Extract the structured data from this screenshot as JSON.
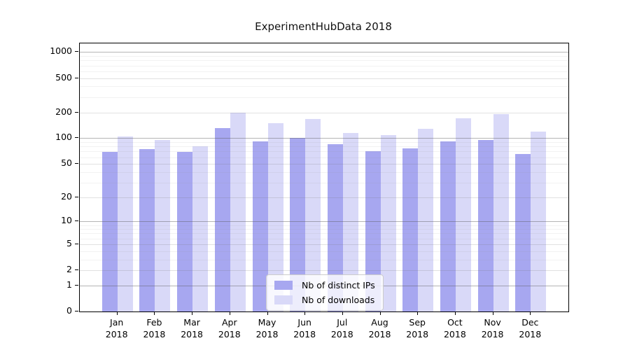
{
  "title": "ExperimentHubData 2018",
  "chart_data": {
    "type": "bar",
    "title": "ExperimentHubData 2018",
    "categories": [
      "Jan",
      "Feb",
      "Mar",
      "Apr",
      "May",
      "Jun",
      "Jul",
      "Aug",
      "Sep",
      "Oct",
      "Nov",
      "Dec"
    ],
    "x_sublabel": "2018",
    "series": [
      {
        "name": "Nb of distinct IPs",
        "color": "#a7a7f0",
        "values": [
          69,
          75,
          69,
          130,
          92,
          100,
          85,
          70,
          76,
          92,
          95,
          65
        ]
      },
      {
        "name": "Nb of downloads",
        "color": "#d9d9f8",
        "values": [
          105,
          95,
          80,
          200,
          150,
          167,
          115,
          108,
          128,
          172,
          190,
          120
        ]
      }
    ],
    "yscale": "log1p",
    "ylim": [
      0,
      1259
    ],
    "yticks": [
      0,
      1,
      2,
      5,
      10,
      20,
      50,
      100,
      200,
      500,
      1000
    ],
    "ygrid_decades": [
      1,
      10,
      100,
      1000
    ],
    "ygrid_minor": [
      3,
      4,
      6,
      7,
      8,
      9,
      30,
      40,
      60,
      70,
      80,
      90,
      300,
      400,
      600,
      700,
      800,
      900
    ],
    "grid": "horizontal",
    "legend_position": "lower-center-inside",
    "xlabel": "",
    "ylabel": ""
  },
  "colors": {
    "bar_distinct_ips": "#a7a7f0",
    "bar_downloads": "#d9d9f8",
    "frame": "#000000",
    "background": "#ffffff"
  }
}
